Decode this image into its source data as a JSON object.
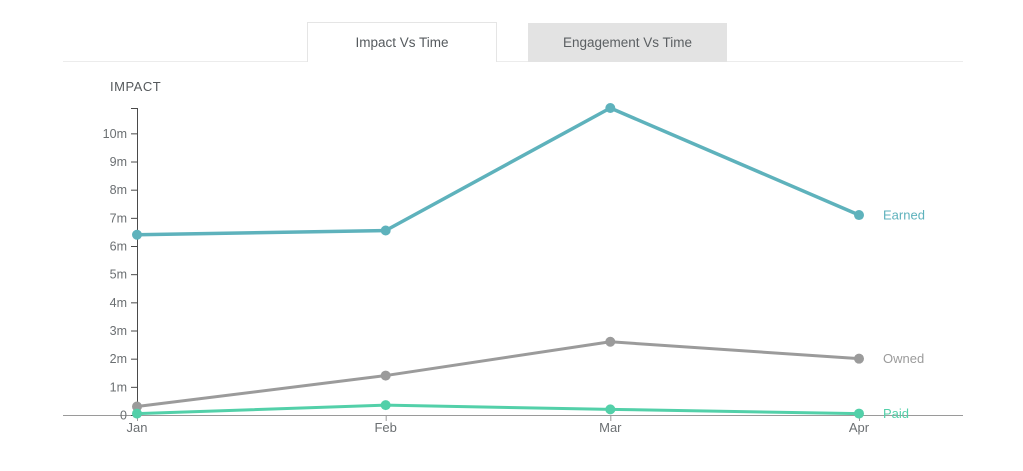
{
  "tabs": {
    "items": [
      {
        "label": "Impact Vs Time",
        "active": true
      },
      {
        "label": "Engagement Vs Time",
        "active": false
      }
    ]
  },
  "chart_data": {
    "type": "line",
    "title": "IMPACT",
    "categories": [
      "Jan",
      "Feb",
      "Mar",
      "Apr"
    ],
    "series": [
      {
        "name": "Earned",
        "color": "#5EB2BC",
        "line_width": 3.5,
        "values": [
          6400000,
          6550000,
          10900000,
          7100000
        ]
      },
      {
        "name": "Owned",
        "color": "#9B9B9B",
        "line_width": 3,
        "values": [
          300000,
          1400000,
          2600000,
          2000000
        ]
      },
      {
        "name": "Paid",
        "color": "#53D0A9",
        "line_width": 3,
        "values": [
          50000,
          350000,
          200000,
          50000
        ]
      }
    ],
    "ylabel": "IMPACT",
    "xlabel": "",
    "ylim": [
      0,
      10900000
    ],
    "y_tick_step": 1000000,
    "y_tick_labels": [
      "0",
      "1m",
      "2m",
      "3m",
      "4m",
      "5m",
      "6m",
      "7m",
      "8m",
      "9m",
      "10m"
    ],
    "grid": false,
    "legend_position": "right-of-last-point",
    "axis_colors": {
      "y_axis": "#4a4a4a",
      "x_axis": "#9a9a9a",
      "tick_text": "#6b6f72"
    }
  }
}
